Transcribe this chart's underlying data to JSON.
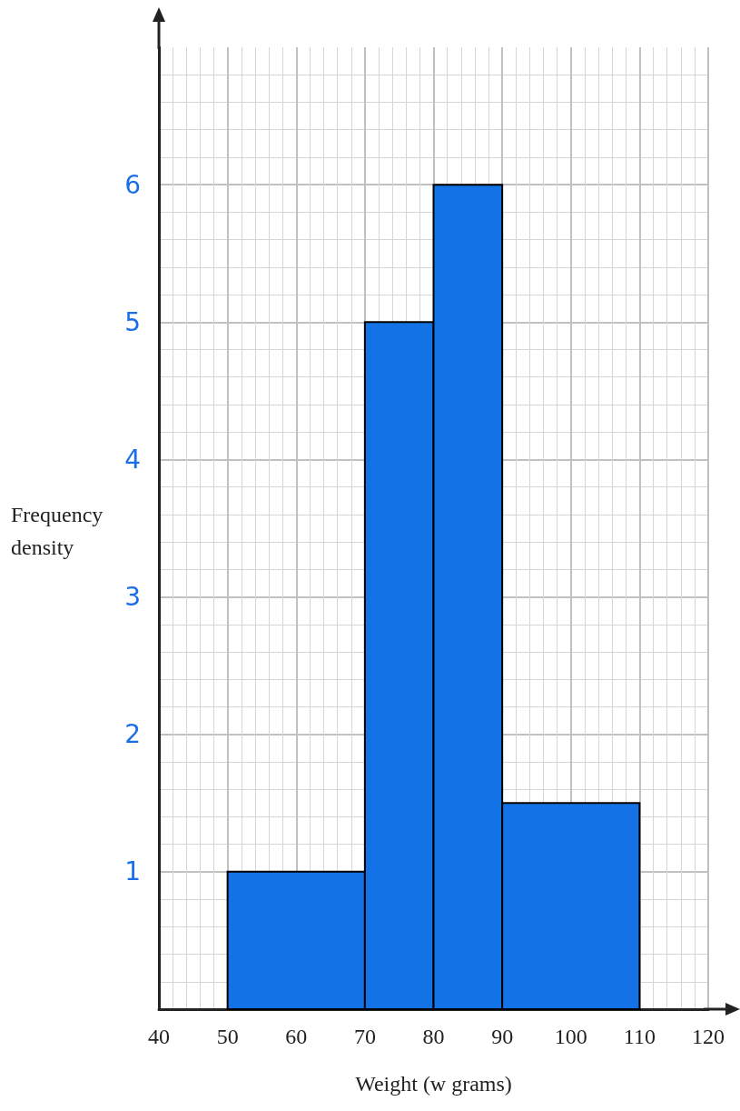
{
  "chart_data": {
    "type": "histogram",
    "xlabel": "Weight (w grams)",
    "ylabel": "Frequency density",
    "bins": [
      50,
      70,
      80,
      90,
      110
    ],
    "values": [
      1,
      5,
      6,
      1.5
    ],
    "color": "#1373e6",
    "xlim": [
      40,
      120
    ],
    "xticks": [
      40,
      50,
      60,
      70,
      80,
      90,
      100,
      110,
      120
    ],
    "ylim": [
      0,
      7
    ],
    "yticks": [
      1,
      2,
      3,
      4,
      5,
      6
    ],
    "grid": true
  }
}
